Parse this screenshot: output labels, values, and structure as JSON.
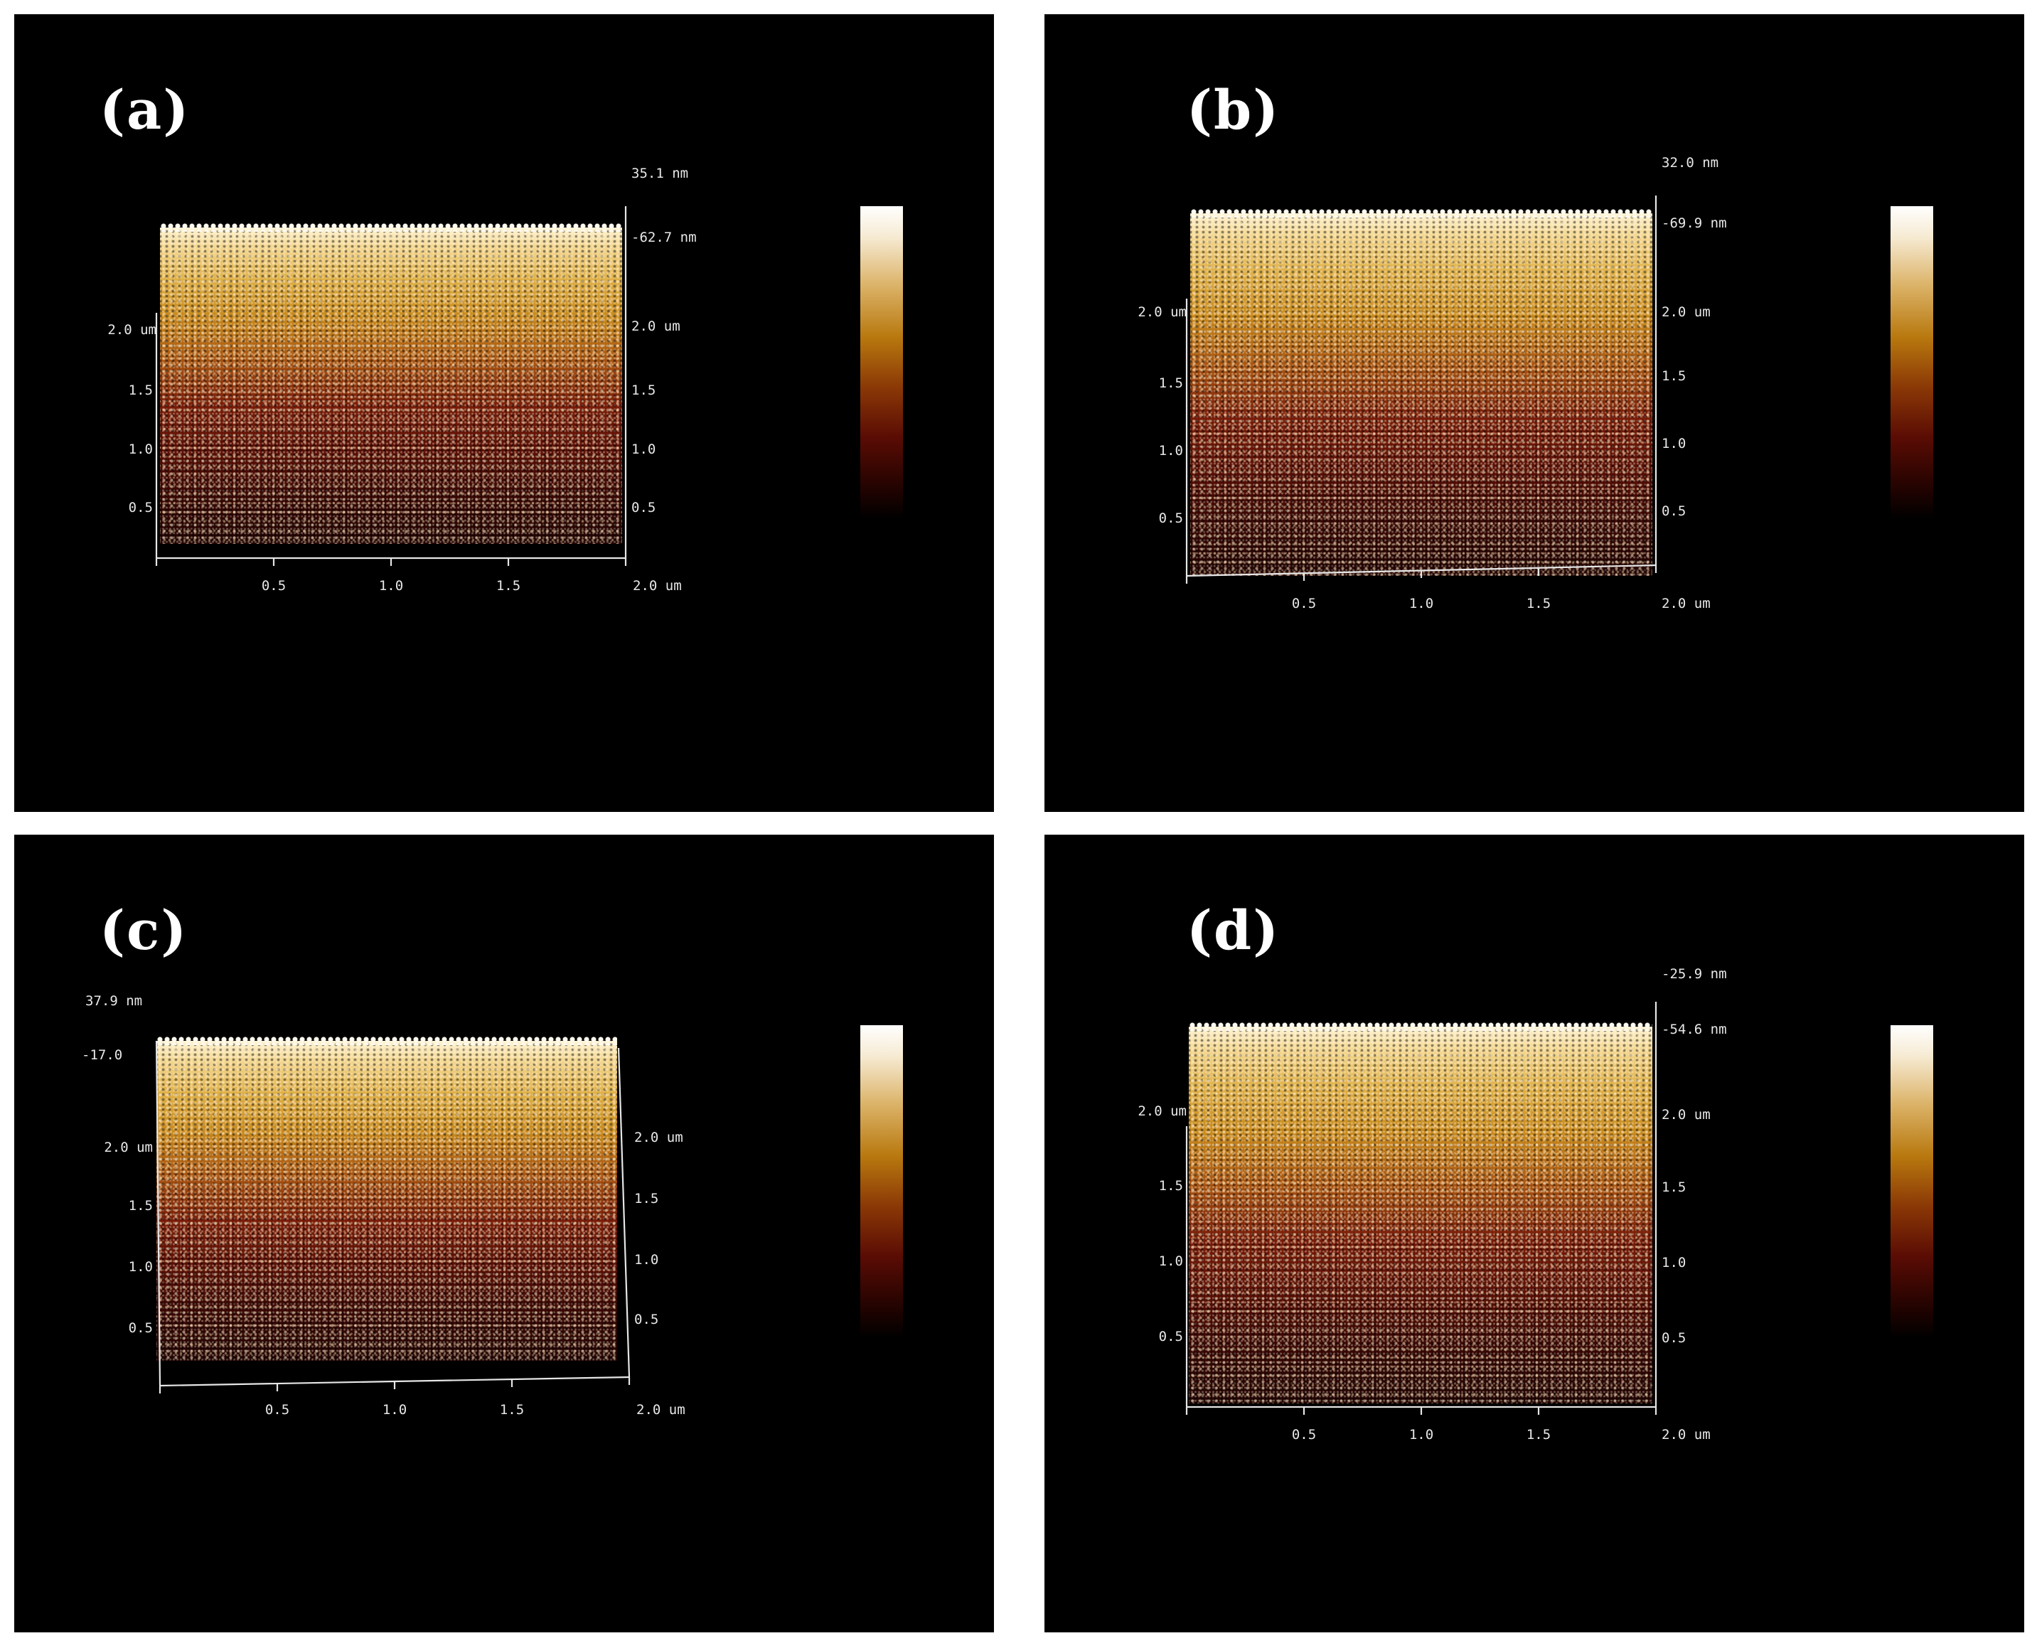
{
  "colors": {
    "background": "#000000",
    "frame": "#ffffff",
    "colorscale": [
      "#ffffff",
      "#dcb46a",
      "#b8780e",
      "#8a3806",
      "#5a0c04",
      "#000000"
    ]
  },
  "panels": [
    {
      "label": "(a)",
      "z_top": "35.1 nm",
      "z_bottom": "-62.7 nm",
      "right_axis_top": "2.0 um",
      "left_axis_top": "2.0 um",
      "y_ticks": [
        "1.5",
        "1.0",
        "0.5"
      ],
      "x_ticks": [
        "0.5",
        "1.0",
        "1.5",
        "2.0 um"
      ]
    },
    {
      "label": "(b)",
      "z_top": "32.0 nm",
      "z_bottom": "-69.9 nm",
      "right_axis_top": "2.0 um",
      "left_axis_top": "2.0 um",
      "y_ticks": [
        "1.5",
        "1.0",
        "0.5"
      ],
      "x_ticks": [
        "0.5",
        "1.0",
        "1.5",
        "2.0 um"
      ]
    },
    {
      "label": "(c)",
      "z_top": "37.9 nm",
      "z_bottom": "-17.0",
      "right_axis_top": "2.0 um",
      "left_axis_top": "2.0 um",
      "y_ticks": [
        "1.5",
        "1.0",
        "0.5"
      ],
      "x_ticks": [
        "0.5",
        "1.0",
        "1.5",
        "2.0 um"
      ]
    },
    {
      "label": "(d)",
      "z_top": "-25.9 nm",
      "z_bottom": "-54.6 nm",
      "right_axis_top": "2.0 um",
      "left_axis_top": "2.0 um",
      "y_ticks": [
        "1.5",
        "1.0",
        "0.5"
      ],
      "x_ticks": [
        "0.5",
        "1.0",
        "1.5",
        "2.0 um"
      ]
    }
  ]
}
